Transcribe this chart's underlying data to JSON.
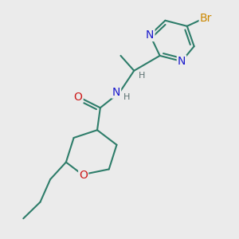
{
  "bg_color": "#ebebeb",
  "bond_color": "#2e7d6a",
  "bond_width": 1.5,
  "atom_colors": {
    "N": "#1a1acc",
    "O": "#cc1a1a",
    "Br": "#cc8800",
    "H_label": "#5a7070"
  },
  "font_size_atom": 10,
  "font_size_small": 8,
  "font_size_br": 10
}
